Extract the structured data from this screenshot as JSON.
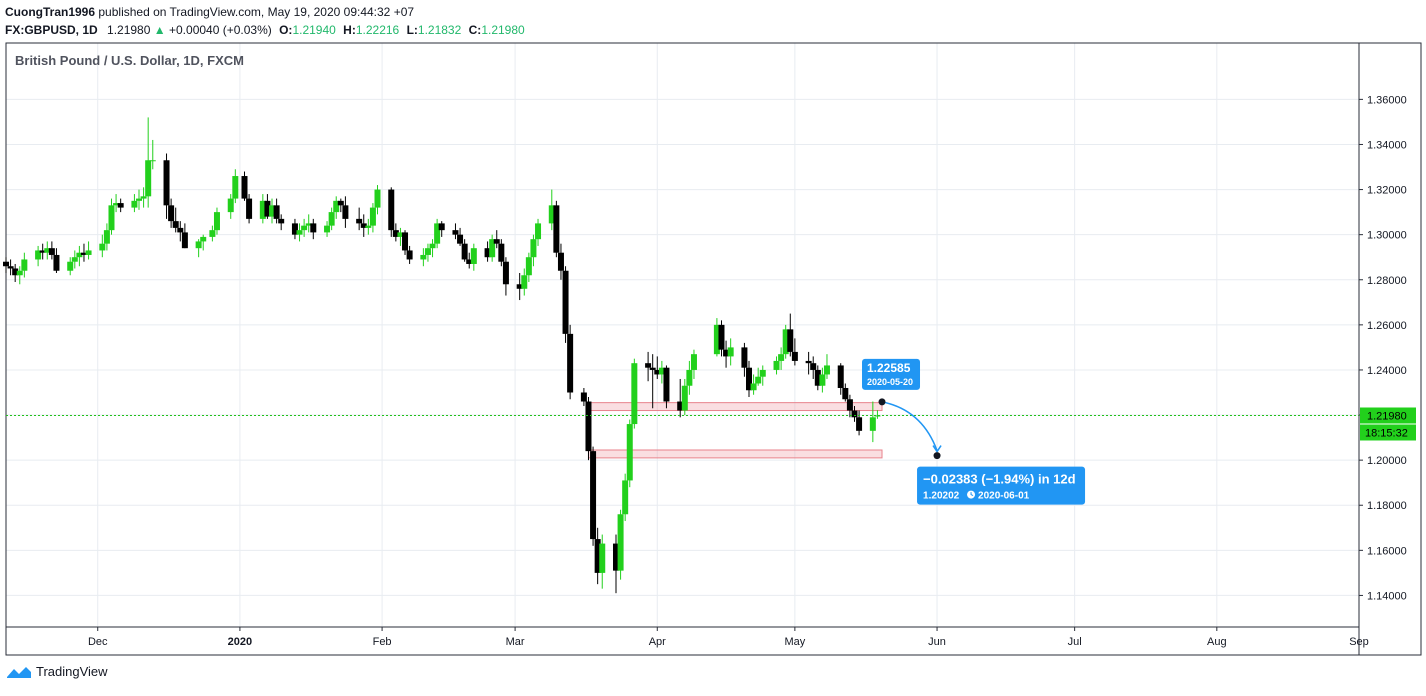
{
  "header": {
    "author": "CuongTran1996",
    "published_on": "published on TradingView.com, May 19, 2020 09:44:32 +07",
    "symbol": "FX:GBPUSD, 1D",
    "last": "1.21980",
    "change_arrow": "▲",
    "change": "+0.00040 (+0.03%)",
    "o_label": "O:",
    "o_value": "1.21940",
    "h_label": "H:",
    "h_value": "1.22216",
    "l_label": "L:",
    "l_value": "1.21832",
    "c_label": "C:",
    "c_value": "1.21980"
  },
  "footer": {
    "brand": "TradingView",
    "logo_icon": "tradingview-logo-icon"
  },
  "colors": {
    "up": "#22d01c",
    "down": "#000000",
    "grid": "#e8ecf1",
    "accent": "#2196f3",
    "zone": "#f0a0a8",
    "price_line": "#21c21b"
  },
  "chart_data": {
    "type": "candlestick",
    "title": "British Pound / U.S. Dollar, 1D, FXCM",
    "y_ticks": [
      "1.36000",
      "1.34000",
      "1.32000",
      "1.30000",
      "1.28000",
      "1.26000",
      "1.24000",
      "1.22000",
      "1.20000",
      "1.18000",
      "1.16000",
      "1.14000"
    ],
    "ylim": [
      1.126,
      1.385
    ],
    "x_ticks": [
      {
        "label": "Dec",
        "date": "2019-12-01"
      },
      {
        "label": "2020",
        "date": "2020-01-01"
      },
      {
        "label": "Feb",
        "date": "2020-02-01"
      },
      {
        "label": "Mar",
        "date": "2020-03-01"
      },
      {
        "label": "Apr",
        "date": "2020-04-01"
      },
      {
        "label": "May",
        "date": "2020-05-01"
      },
      {
        "label": "Jun",
        "date": "2020-06-01"
      },
      {
        "label": "Jul",
        "date": "2020-07-01"
      },
      {
        "label": "Aug",
        "date": "2020-08-01"
      },
      {
        "label": "Sep",
        "date": "2020-09-01"
      }
    ],
    "xlim": [
      "2019-11-11",
      "2020-09-01"
    ],
    "last_price": "1.21980",
    "countdown": "18:15:32",
    "grid": true,
    "candles": [
      [
        "2019-11-11",
        1.288,
        1.29,
        1.283,
        1.286
      ],
      [
        "2019-11-12",
        1.286,
        1.289,
        1.282,
        1.285
      ],
      [
        "2019-11-13",
        1.285,
        1.287,
        1.279,
        1.282
      ],
      [
        "2019-11-14",
        1.282,
        1.286,
        1.278,
        1.284
      ],
      [
        "2019-11-15",
        1.284,
        1.292,
        1.281,
        1.289
      ],
      [
        "2019-11-18",
        1.289,
        1.295,
        1.286,
        1.293
      ],
      [
        "2019-11-19",
        1.293,
        1.296,
        1.289,
        1.292
      ],
      [
        "2019-11-20",
        1.292,
        1.297,
        1.289,
        1.294
      ],
      [
        "2019-11-21",
        1.294,
        1.297,
        1.289,
        1.291
      ],
      [
        "2019-11-22",
        1.291,
        1.294,
        1.283,
        1.284
      ],
      [
        "2019-11-25",
        1.284,
        1.29,
        1.282,
        1.288
      ],
      [
        "2019-11-26",
        1.288,
        1.293,
        1.285,
        1.29
      ],
      [
        "2019-11-27",
        1.29,
        1.295,
        1.286,
        1.292
      ],
      [
        "2019-11-28",
        1.292,
        1.296,
        1.288,
        1.291
      ],
      [
        "2019-11-29",
        1.291,
        1.297,
        1.289,
        1.293
      ],
      [
        "2019-12-02",
        1.293,
        1.3,
        1.29,
        1.296
      ],
      [
        "2019-12-03",
        1.296,
        1.305,
        1.293,
        1.302
      ],
      [
        "2019-12-04",
        1.302,
        1.316,
        1.3,
        1.313
      ],
      [
        "2019-12-05",
        1.313,
        1.318,
        1.31,
        1.314
      ],
      [
        "2019-12-06",
        1.314,
        1.316,
        1.31,
        1.312
      ],
      [
        "2019-12-09",
        1.312,
        1.318,
        1.31,
        1.315
      ],
      [
        "2019-12-10",
        1.315,
        1.32,
        1.311,
        1.316
      ],
      [
        "2019-12-11",
        1.316,
        1.321,
        1.312,
        1.317
      ],
      [
        "2019-12-12",
        1.317,
        1.352,
        1.312,
        1.333
      ],
      [
        "2019-12-13",
        1.333,
        1.342,
        1.329,
        1.333
      ],
      [
        "2019-12-16",
        1.333,
        1.336,
        1.307,
        1.313
      ],
      [
        "2019-12-17",
        1.313,
        1.316,
        1.303,
        1.306
      ],
      [
        "2019-12-18",
        1.306,
        1.312,
        1.301,
        1.303
      ],
      [
        "2019-12-19",
        1.303,
        1.306,
        1.297,
        1.301
      ],
      [
        "2019-12-20",
        1.301,
        1.305,
        1.294,
        1.294
      ],
      [
        "2019-12-23",
        1.294,
        1.298,
        1.29,
        1.297
      ],
      [
        "2019-12-24",
        1.297,
        1.3,
        1.293,
        1.299
      ],
      [
        "2019-12-26",
        1.299,
        1.304,
        1.297,
        1.302
      ],
      [
        "2019-12-27",
        1.302,
        1.312,
        1.3,
        1.31
      ],
      [
        "2019-12-30",
        1.31,
        1.318,
        1.307,
        1.316
      ],
      [
        "2019-12-31",
        1.316,
        1.329,
        1.314,
        1.326
      ],
      [
        "2020-01-02",
        1.326,
        1.328,
        1.315,
        1.316
      ],
      [
        "2020-01-03",
        1.316,
        1.318,
        1.305,
        1.307
      ],
      [
        "2020-01-06",
        1.307,
        1.318,
        1.305,
        1.315
      ],
      [
        "2020-01-07",
        1.315,
        1.318,
        1.307,
        1.308
      ],
      [
        "2020-01-08",
        1.308,
        1.316,
        1.305,
        1.313
      ],
      [
        "2020-01-09",
        1.313,
        1.316,
        1.305,
        1.307
      ],
      [
        "2020-01-10",
        1.307,
        1.309,
        1.302,
        1.305
      ],
      [
        "2020-01-13",
        1.305,
        1.307,
        1.298,
        1.3
      ],
      [
        "2020-01-14",
        1.3,
        1.305,
        1.297,
        1.302
      ],
      [
        "2020-01-15",
        1.302,
        1.307,
        1.299,
        1.304
      ],
      [
        "2020-01-16",
        1.304,
        1.309,
        1.301,
        1.305
      ],
      [
        "2020-01-17",
        1.305,
        1.307,
        1.298,
        1.301
      ],
      [
        "2020-01-20",
        1.301,
        1.306,
        1.299,
        1.304
      ],
      [
        "2020-01-21",
        1.304,
        1.312,
        1.302,
        1.31
      ],
      [
        "2020-01-22",
        1.31,
        1.317,
        1.307,
        1.315
      ],
      [
        "2020-01-23",
        1.315,
        1.316,
        1.31,
        1.313
      ],
      [
        "2020-01-24",
        1.313,
        1.317,
        1.303,
        1.307
      ],
      [
        "2020-01-27",
        1.307,
        1.312,
        1.302,
        1.305
      ],
      [
        "2020-01-28",
        1.305,
        1.309,
        1.299,
        1.303
      ],
      [
        "2020-01-29",
        1.303,
        1.307,
        1.3,
        1.304
      ],
      [
        "2020-01-30",
        1.304,
        1.314,
        1.301,
        1.312
      ],
      [
        "2020-01-31",
        1.312,
        1.322,
        1.309,
        1.32
      ],
      [
        "2020-02-03",
        1.32,
        1.321,
        1.299,
        1.302
      ],
      [
        "2020-02-04",
        1.302,
        1.305,
        1.297,
        1.299
      ],
      [
        "2020-02-05",
        1.299,
        1.303,
        1.295,
        1.301
      ],
      [
        "2020-02-06",
        1.301,
        1.302,
        1.291,
        1.293
      ],
      [
        "2020-02-07",
        1.293,
        1.295,
        1.287,
        1.289
      ],
      [
        "2020-02-10",
        1.289,
        1.294,
        1.286,
        1.291
      ],
      [
        "2020-02-11",
        1.291,
        1.296,
        1.288,
        1.294
      ],
      [
        "2020-02-12",
        1.294,
        1.298,
        1.29,
        1.296
      ],
      [
        "2020-02-13",
        1.296,
        1.307,
        1.294,
        1.305
      ],
      [
        "2020-02-14",
        1.305,
        1.306,
        1.299,
        1.302
      ],
      [
        "2020-02-17",
        1.302,
        1.305,
        1.298,
        1.3
      ],
      [
        "2020-02-18",
        1.3,
        1.303,
        1.295,
        1.296
      ],
      [
        "2020-02-19",
        1.296,
        1.298,
        1.288,
        1.289
      ],
      [
        "2020-02-20",
        1.289,
        1.292,
        1.285,
        1.287
      ],
      [
        "2020-02-21",
        1.287,
        1.296,
        1.284,
        1.294
      ],
      [
        "2020-02-24",
        1.294,
        1.297,
        1.288,
        1.29
      ],
      [
        "2020-02-25",
        1.29,
        1.3,
        1.288,
        1.298
      ],
      [
        "2020-02-26",
        1.298,
        1.302,
        1.294,
        1.296
      ],
      [
        "2020-02-27",
        1.296,
        1.298,
        1.286,
        1.288
      ],
      [
        "2020-02-28",
        1.288,
        1.29,
        1.273,
        1.278
      ],
      [
        "2020-03-02",
        1.278,
        1.283,
        1.271,
        1.276
      ],
      [
        "2020-03-03",
        1.276,
        1.285,
        1.273,
        1.282
      ],
      [
        "2020-03-04",
        1.282,
        1.292,
        1.279,
        1.29
      ],
      [
        "2020-03-05",
        1.29,
        1.3,
        1.286,
        1.298
      ],
      [
        "2020-03-06",
        1.298,
        1.307,
        1.295,
        1.305
      ],
      [
        "2020-03-09",
        1.305,
        1.32,
        1.302,
        1.313
      ],
      [
        "2020-03-10",
        1.313,
        1.315,
        1.29,
        1.292
      ],
      [
        "2020-03-11",
        1.292,
        1.296,
        1.28,
        1.284
      ],
      [
        "2020-03-12",
        1.284,
        1.286,
        1.252,
        1.256
      ],
      [
        "2020-03-13",
        1.256,
        1.26,
        1.227,
        1.23
      ],
      [
        "2020-03-16",
        1.23,
        1.232,
        1.224,
        1.226
      ],
      [
        "2020-03-17",
        1.226,
        1.228,
        1.2,
        1.204
      ],
      [
        "2020-03-18",
        1.204,
        1.206,
        1.162,
        1.165
      ],
      [
        "2020-03-19",
        1.165,
        1.17,
        1.145,
        1.15
      ],
      [
        "2020-03-20",
        1.15,
        1.167,
        1.143,
        1.163
      ],
      [
        "2020-03-23",
        1.163,
        1.167,
        1.141,
        1.151
      ],
      [
        "2020-03-24",
        1.151,
        1.178,
        1.147,
        1.176
      ],
      [
        "2020-03-25",
        1.176,
        1.194,
        1.173,
        1.191
      ],
      [
        "2020-03-26",
        1.191,
        1.218,
        1.188,
        1.216
      ],
      [
        "2020-03-27",
        1.216,
        1.245,
        1.214,
        1.243
      ],
      [
        "2020-03-30",
        1.243,
        1.248,
        1.235,
        1.241
      ],
      [
        "2020-03-31",
        1.241,
        1.247,
        1.223,
        1.24
      ],
      [
        "2020-04-01",
        1.24,
        1.246,
        1.236,
        1.238
      ],
      [
        "2020-04-02",
        1.238,
        1.244,
        1.234,
        1.241
      ],
      [
        "2020-04-03",
        1.241,
        1.242,
        1.223,
        1.226
      ],
      [
        "2020-04-06",
        1.226,
        1.236,
        1.219,
        1.222
      ],
      [
        "2020-04-07",
        1.222,
        1.236,
        1.22,
        1.233
      ],
      [
        "2020-04-08",
        1.233,
        1.244,
        1.229,
        1.24
      ],
      [
        "2020-04-09",
        1.24,
        1.249,
        1.236,
        1.247
      ],
      [
        "2020-04-14",
        1.247,
        1.263,
        1.246,
        1.26
      ],
      [
        "2020-04-15",
        1.26,
        1.262,
        1.246,
        1.249
      ],
      [
        "2020-04-16",
        1.249,
        1.253,
        1.241,
        1.246
      ],
      [
        "2020-04-17",
        1.246,
        1.254,
        1.242,
        1.25
      ],
      [
        "2020-04-20",
        1.25,
        1.252,
        1.237,
        1.241
      ],
      [
        "2020-04-21",
        1.241,
        1.244,
        1.228,
        1.231
      ],
      [
        "2020-04-22",
        1.231,
        1.238,
        1.229,
        1.234
      ],
      [
        "2020-04-23",
        1.234,
        1.241,
        1.233,
        1.237
      ],
      [
        "2020-04-24",
        1.237,
        1.242,
        1.233,
        1.24
      ],
      [
        "2020-04-27",
        1.24,
        1.246,
        1.238,
        1.244
      ],
      [
        "2020-04-28",
        1.244,
        1.25,
        1.24,
        1.247
      ],
      [
        "2020-04-29",
        1.247,
        1.26,
        1.245,
        1.258
      ],
      [
        "2020-04-30",
        1.258,
        1.265,
        1.246,
        1.248
      ],
      [
        "2020-05-01",
        1.248,
        1.254,
        1.242,
        1.244
      ],
      [
        "2020-05-04",
        1.244,
        1.248,
        1.238,
        1.243
      ],
      [
        "2020-05-05",
        1.243,
        1.246,
        1.236,
        1.24
      ],
      [
        "2020-05-06",
        1.24,
        1.242,
        1.231,
        1.233
      ],
      [
        "2020-05-07",
        1.233,
        1.241,
        1.23,
        1.238
      ],
      [
        "2020-05-08",
        1.238,
        1.247,
        1.236,
        1.242
      ],
      [
        "2020-05-11",
        1.242,
        1.243,
        1.229,
        1.232
      ],
      [
        "2020-05-12",
        1.232,
        1.234,
        1.226,
        1.227
      ],
      [
        "2020-05-13",
        1.227,
        1.229,
        1.219,
        1.222
      ],
      [
        "2020-05-14",
        1.222,
        1.224,
        1.217,
        1.219
      ],
      [
        "2020-05-15",
        1.219,
        1.222,
        1.211,
        1.213
      ],
      [
        "2020-05-18",
        1.213,
        1.226,
        1.208,
        1.219
      ],
      [
        "2020-05-19",
        1.2194,
        1.22216,
        1.21832,
        1.2198
      ]
    ],
    "zones": [
      {
        "top": 1.2255,
        "bottom": 1.222,
        "from": "2020-03-17",
        "to": "2020-05-20"
      },
      {
        "top": 1.2045,
        "bottom": 1.201,
        "from": "2020-03-17",
        "to": "2020-05-20"
      }
    ],
    "annotations": [
      {
        "kind": "point-label",
        "date": "2020-05-20",
        "price": 1.22585,
        "value": "1.22585",
        "date_label": "2020-05-20"
      },
      {
        "kind": "forecast",
        "from_date": "2020-05-20",
        "from_price": 1.22585,
        "to_date": "2020-06-01",
        "to_price": 1.20202,
        "change": "−0.02383 (−1.94%) in 12d",
        "target": "1.20202",
        "target_date": "2020-06-01",
        "clock_icon": "clock-icon"
      }
    ]
  }
}
